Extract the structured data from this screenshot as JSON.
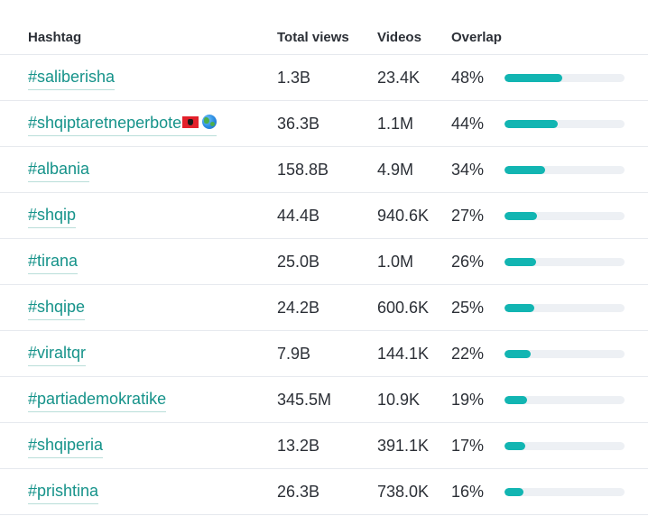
{
  "columns": {
    "hashtag": "Hashtag",
    "views": "Total views",
    "videos": "Videos",
    "overlap": "Overlap"
  },
  "rows": [
    {
      "hashtag": "#saliberisha",
      "views": "1.3B",
      "videos": "23.4K",
      "overlap": "48%",
      "overlap_value": 48
    },
    {
      "hashtag": "#shqiptaretneperbote",
      "emoji": [
        "albania-flag-icon",
        "globe-icon"
      ],
      "views": "36.3B",
      "videos": "1.1M",
      "overlap": "44%",
      "overlap_value": 44
    },
    {
      "hashtag": "#albania",
      "views": "158.8B",
      "videos": "4.9M",
      "overlap": "34%",
      "overlap_value": 34
    },
    {
      "hashtag": "#shqip",
      "views": "44.4B",
      "videos": "940.6K",
      "overlap": "27%",
      "overlap_value": 27
    },
    {
      "hashtag": "#tirana",
      "views": "25.0B",
      "videos": "1.0M",
      "overlap": "26%",
      "overlap_value": 26
    },
    {
      "hashtag": "#shqipe",
      "views": "24.2B",
      "videos": "600.6K",
      "overlap": "25%",
      "overlap_value": 25
    },
    {
      "hashtag": "#viraltqr",
      "views": "7.9B",
      "videos": "144.1K",
      "overlap": "22%",
      "overlap_value": 22
    },
    {
      "hashtag": "#partiademokratike",
      "views": "345.5M",
      "videos": "10.9K",
      "overlap": "19%",
      "overlap_value": 19
    },
    {
      "hashtag": "#shqiperia",
      "views": "13.2B",
      "videos": "391.1K",
      "overlap": "17%",
      "overlap_value": 17
    },
    {
      "hashtag": "#prishtina",
      "views": "26.3B",
      "videos": "738.0K",
      "overlap": "16%",
      "overlap_value": 16
    }
  ],
  "colors": {
    "link": "#16938a",
    "bar_fill": "#12b5b2",
    "bar_track": "#edf0f4",
    "divider": "#e6e9ee"
  }
}
